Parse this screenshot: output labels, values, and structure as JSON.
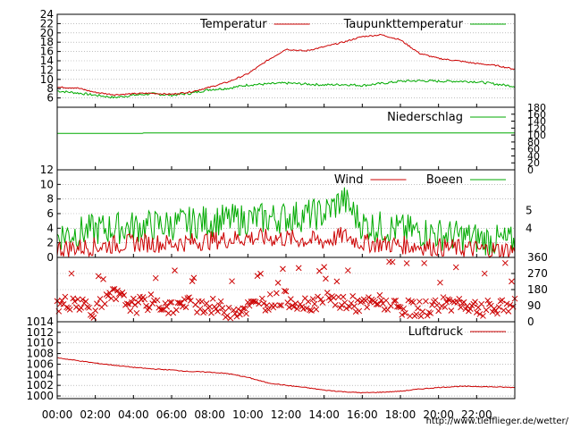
{
  "chart_data": [
    {
      "type": "line",
      "x_range": [
        "00:00",
        "24:00"
      ],
      "ylim": [
        4,
        24
      ],
      "yticks": [
        6,
        8,
        10,
        12,
        14,
        16,
        18,
        20,
        22,
        24
      ],
      "grid": true,
      "legend_position": "top-right",
      "series": [
        {
          "name": "Temperatur",
          "color": "#cc0000",
          "points": [
            [
              "00:00",
              8.3
            ],
            [
              "01:00",
              8.2
            ],
            [
              "02:00",
              7.2
            ],
            [
              "03:00",
              6.7
            ],
            [
              "04:00",
              6.9
            ],
            [
              "04:30",
              7.0
            ],
            [
              "05:00",
              7.0
            ],
            [
              "06:00",
              6.8
            ],
            [
              "07:00",
              7.3
            ],
            [
              "08:00",
              8.3
            ],
            [
              "09:00",
              9.5
            ],
            [
              "10:00",
              11.2
            ],
            [
              "11:00",
              14.0
            ],
            [
              "12:00",
              16.5
            ],
            [
              "13:00",
              16.1
            ],
            [
              "14:00",
              17.0
            ],
            [
              "15:00",
              18.0
            ],
            [
              "16:00",
              19.2
            ],
            [
              "17:00",
              19.6
            ],
            [
              "18:00",
              18.5
            ],
            [
              "19:00",
              15.6
            ],
            [
              "20:00",
              14.5
            ],
            [
              "21:00",
              14.0
            ],
            [
              "22:00",
              13.4
            ],
            [
              "23:00",
              13.0
            ],
            [
              "24:00",
              12.2
            ]
          ]
        },
        {
          "name": "Taupunkttemperatur",
          "color": "#00aa00",
          "points": [
            [
              "00:00",
              7.5
            ],
            [
              "01:00",
              7.1
            ],
            [
              "02:00",
              6.6
            ],
            [
              "03:00",
              6.1
            ],
            [
              "04:00",
              6.6
            ],
            [
              "05:00",
              6.9
            ],
            [
              "06:00",
              6.6
            ],
            [
              "07:00",
              7.0
            ],
            [
              "08:00",
              7.8
            ],
            [
              "09:00",
              8.1
            ],
            [
              "10:00",
              8.8
            ],
            [
              "11:00",
              9.0
            ],
            [
              "12:00",
              9.2
            ],
            [
              "13:00",
              9.0
            ],
            [
              "14:00",
              8.8
            ],
            [
              "15:00",
              8.9
            ],
            [
              "16:00",
              8.7
            ],
            [
              "17:00",
              9.1
            ],
            [
              "18:00",
              9.6
            ],
            [
              "19:00",
              9.7
            ],
            [
              "20:00",
              9.6
            ],
            [
              "21:00",
              9.6
            ],
            [
              "22:00",
              9.5
            ],
            [
              "23:00",
              9.0
            ],
            [
              "24:00",
              8.5
            ]
          ]
        }
      ]
    },
    {
      "type": "line",
      "x_range": [
        "00:00",
        "24:00"
      ],
      "ylim": [
        0,
        180
      ],
      "yticks": [
        0,
        20,
        40,
        60,
        80,
        100,
        120,
        140,
        160,
        180
      ],
      "legend_position": "top-right",
      "series": [
        {
          "name": "Niederschlag",
          "color": "#00aa00",
          "points": [
            [
              "00:00",
              105
            ],
            [
              "04:30",
              105
            ],
            [
              "04:31",
              106
            ],
            [
              "24:00",
              106
            ]
          ]
        }
      ]
    },
    {
      "type": "line",
      "x_range": [
        "00:00",
        "24:00"
      ],
      "ylim": [
        0,
        12
      ],
      "yticks": [
        0,
        2,
        4,
        6,
        8,
        10,
        12
      ],
      "right_ticks": [
        4,
        5
      ],
      "grid": true,
      "legend_position": "top-right",
      "series": [
        {
          "name": "Wind",
          "color": "#cc0000",
          "points": [
            [
              "00:00",
              1.2
            ],
            [
              "02:00",
              1.5
            ],
            [
              "04:00",
              2.0
            ],
            [
              "06:00",
              1.9
            ],
            [
              "08:00",
              2.3
            ],
            [
              "10:00",
              2.7
            ],
            [
              "12:00",
              2.6
            ],
            [
              "14:00",
              2.2
            ],
            [
              "15:00",
              3.0
            ],
            [
              "16:00",
              2.0
            ],
            [
              "18:00",
              1.7
            ],
            [
              "20:00",
              1.4
            ],
            [
              "22:00",
              1.1
            ],
            [
              "24:00",
              1.0
            ]
          ]
        },
        {
          "name": "Boeen",
          "color": "#00aa00",
          "points": [
            [
              "00:00",
              3.0
            ],
            [
              "02:00",
              3.8
            ],
            [
              "04:00",
              4.2
            ],
            [
              "06:00",
              4.5
            ],
            [
              "08:00",
              5.0
            ],
            [
              "10:00",
              5.2
            ],
            [
              "12:00",
              5.5
            ],
            [
              "14:00",
              6.0
            ],
            [
              "15:00",
              8.0
            ],
            [
              "16:00",
              4.5
            ],
            [
              "18:00",
              3.8
            ],
            [
              "20:00",
              3.2
            ],
            [
              "22:00",
              2.6
            ],
            [
              "24:00",
              2.0
            ]
          ]
        }
      ]
    },
    {
      "type": "scatter",
      "x_range": [
        "00:00",
        "24:00"
      ],
      "yticks_right": [
        0,
        90,
        180,
        270,
        360
      ],
      "ylim": [
        0,
        360
      ],
      "series": [
        {
          "color": "#cc0000",
          "points": [
            [
              "00:00",
              90
            ],
            [
              "01:00",
              120
            ],
            [
              "02:00",
              60
            ],
            [
              "03:00",
              150
            ],
            [
              "04:00",
              90
            ],
            [
              "05:00",
              110
            ],
            [
              "06:00",
              80
            ],
            [
              "07:00",
              100
            ],
            [
              "08:00",
              90
            ],
            [
              "09:00",
              60
            ],
            [
              "10:00",
              80
            ],
            [
              "11:00",
              110
            ],
            [
              "12:00",
              130
            ],
            [
              "13:00",
              100
            ],
            [
              "14:00",
              120
            ],
            [
              "15:00",
              110
            ],
            [
              "16:00",
              90
            ],
            [
              "17:00",
              110
            ],
            [
              "18:00",
              80
            ],
            [
              "19:00",
              70
            ],
            [
              "20:00",
              90
            ],
            [
              "21:00",
              110
            ],
            [
              "22:00",
              80
            ],
            [
              "23:00",
              70
            ],
            [
              "24:00",
              100
            ]
          ]
        }
      ]
    },
    {
      "type": "line",
      "x_range": [
        "00:00",
        "24:00"
      ],
      "ylim": [
        999.5,
        1014
      ],
      "yticks": [
        1000,
        1002,
        1004,
        1006,
        1008,
        1010,
        1012,
        1014
      ],
      "grid": true,
      "legend_position": "top-right",
      "series": [
        {
          "name": "Luftdruck",
          "color": "#cc0000",
          "points": [
            [
              "00:00",
              1007.2
            ],
            [
              "01:00",
              1006.7
            ],
            [
              "02:00",
              1006.2
            ],
            [
              "03:00",
              1005.8
            ],
            [
              "04:00",
              1005.4
            ],
            [
              "05:00",
              1005.1
            ],
            [
              "06:00",
              1004.9
            ],
            [
              "07:00",
              1004.6
            ],
            [
              "08:00",
              1004.5
            ],
            [
              "09:00",
              1004.2
            ],
            [
              "10:00",
              1003.5
            ],
            [
              "11:00",
              1002.5
            ],
            [
              "12:00",
              1002.0
            ],
            [
              "13:00",
              1001.6
            ],
            [
              "14:00",
              1001.1
            ],
            [
              "15:00",
              1000.8
            ],
            [
              "16:00",
              1000.6
            ],
            [
              "17:00",
              1000.7
            ],
            [
              "18:00",
              1000.9
            ],
            [
              "19:00",
              1001.3
            ],
            [
              "20:00",
              1001.6
            ],
            [
              "21:00",
              1001.8
            ],
            [
              "22:00",
              1001.8
            ],
            [
              "23:00",
              1001.7
            ],
            [
              "24:00",
              1001.6
            ]
          ]
        }
      ]
    }
  ],
  "x_tick_labels": [
    "00:00",
    "02:00",
    "04:00",
    "06:00",
    "08:00",
    "10:00",
    "12:00",
    "14:00",
    "16:00",
    "18:00",
    "20:00",
    "22:00"
  ],
  "footer": {
    "url": "http://www.tiefflieger.de/wetter/",
    "color": "#cc0000"
  }
}
